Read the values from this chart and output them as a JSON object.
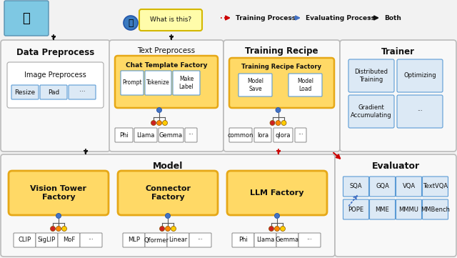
{
  "bg_color": "#f2f2f2",
  "panel_fill": "#f8f8f8",
  "panel_edge": "#bbbbbb",
  "orange_box": "#ffd966",
  "orange_border": "#e6a817",
  "blue_box_fill": "#dce9f5",
  "blue_box_border": "#5b9bd5",
  "red_arrow": "#cc0000",
  "blue_arrow": "#4472c4",
  "black": "#111111",
  "legend": {
    "training": "Training Process",
    "evaluating": "Evaluating Process",
    "both": "Both"
  },
  "top_left": {
    "title": "Data Preprocess",
    "inner_title": "Image Preprocess",
    "boxes": [
      "Resize",
      "Pad",
      "···"
    ]
  },
  "top_mid": {
    "title": "Text Preprocess",
    "factory": "Chat Template Factory",
    "inner_boxes": [
      "Prompt",
      "Tokenize",
      "Make\nLabel"
    ],
    "subs": [
      "Phi",
      "Llama",
      "Gemma",
      "···"
    ]
  },
  "top_r1": {
    "title": "Training Recipe",
    "factory": "Training Recipe Factory",
    "inner_boxes": [
      "Model\nSave",
      "Model\nLoad"
    ],
    "subs": [
      "common",
      "lora",
      "qlora",
      "···"
    ]
  },
  "top_r2": {
    "title": "Trainer",
    "boxes": [
      [
        "Distributed\nTraining",
        "Optimizing"
      ],
      [
        "Gradient\nAccumulating",
        "···"
      ]
    ]
  },
  "bot_left": {
    "title": "Model",
    "factories": [
      {
        "name": "Vision Tower\nFactory",
        "subs": [
          "CLIP",
          "SigLIP",
          "MoF",
          "···"
        ]
      },
      {
        "name": "Connector\nFactory",
        "subs": [
          "MLP",
          "Qformer",
          "Linear",
          "···"
        ]
      },
      {
        "name": "LLM Factory",
        "subs": [
          "Phi",
          "Llama",
          "Gemma",
          "···"
        ]
      }
    ]
  },
  "bot_right": {
    "title": "Evaluator",
    "rows": [
      [
        "SQA",
        "GQA",
        "VQA",
        "TextVQA"
      ],
      [
        "POPE",
        "MME",
        "MMMU",
        "MMBench"
      ]
    ]
  }
}
